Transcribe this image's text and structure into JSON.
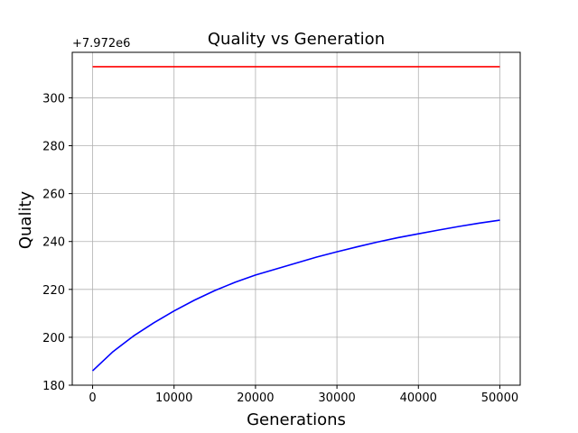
{
  "chart_data": {
    "type": "line",
    "title": "Quality vs Generation",
    "xlabel": "Generations",
    "ylabel": "Quality",
    "y_offset_label": "+7.972e6",
    "xlim": [
      -2500,
      52500
    ],
    "ylim": [
      180,
      319
    ],
    "xticks": [
      0,
      10000,
      20000,
      30000,
      40000,
      50000
    ],
    "yticks": [
      180,
      200,
      220,
      240,
      260,
      280,
      300
    ],
    "grid": true,
    "series": [
      {
        "color": "#ff0000",
        "x": [
          0,
          50000
        ],
        "y": [
          313,
          313
        ]
      },
      {
        "color": "#0000ff",
        "x": [
          0,
          2500,
          5000,
          7500,
          10000,
          12500,
          15000,
          17500,
          20000,
          22500,
          25000,
          27500,
          30000,
          32500,
          35000,
          37500,
          40000,
          42500,
          45000,
          47500,
          50000
        ],
        "y": [
          186,
          194,
          200.5,
          206,
          211,
          215.5,
          219.5,
          223,
          226,
          228.5,
          231,
          233.5,
          235.7,
          237.8,
          239.8,
          241.6,
          243.2,
          244.8,
          246.3,
          247.7,
          248.9
        ]
      }
    ]
  }
}
